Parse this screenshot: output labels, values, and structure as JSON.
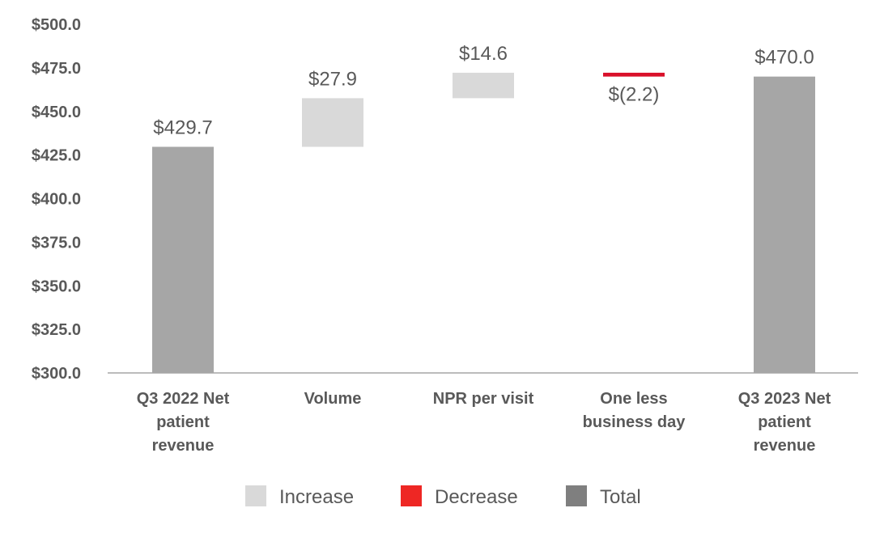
{
  "chart_data": {
    "type": "waterfall",
    "title": "",
    "xlabel": "",
    "ylabel": "",
    "ylim": [
      300,
      500
    ],
    "yticks": [
      300,
      325,
      350,
      375,
      400,
      425,
      450,
      475,
      500
    ],
    "ytick_labels": [
      "$300.0",
      "$325.0",
      "$350.0",
      "$375.0",
      "$400.0",
      "$425.0",
      "$450.0",
      "$475.0",
      "$500.0"
    ],
    "grid": false,
    "categories": [
      [
        "Q3 2022 Net",
        "patient",
        "revenue"
      ],
      [
        "Volume"
      ],
      [
        "NPR per visit"
      ],
      [
        "One less",
        "business day"
      ],
      [
        "Q3 2023 Net",
        "patient",
        "revenue"
      ]
    ],
    "bars": [
      {
        "kind": "total",
        "value": 429.7,
        "label": "$429.7"
      },
      {
        "kind": "increase",
        "value": 27.9,
        "label": "$27.9"
      },
      {
        "kind": "increase",
        "value": 14.6,
        "label": "$14.6"
      },
      {
        "kind": "decrease",
        "value": -2.2,
        "label": "$(2.2)"
      },
      {
        "kind": "total",
        "value": 470.0,
        "label": "$470.0"
      }
    ],
    "legend": {
      "placement": "bottom",
      "entries": [
        {
          "kind": "increase",
          "label": "Increase"
        },
        {
          "kind": "decrease",
          "label": "Decrease"
        },
        {
          "kind": "total",
          "label": "Total"
        }
      ]
    },
    "colors": {
      "increase": "#d9d9d9",
      "decrease": "#d9102a",
      "total": "#a6a6a6",
      "legend_decrease": "#ee2724",
      "legend_total": "#7f7f7f",
      "axis": "#a6a6a6"
    }
  }
}
